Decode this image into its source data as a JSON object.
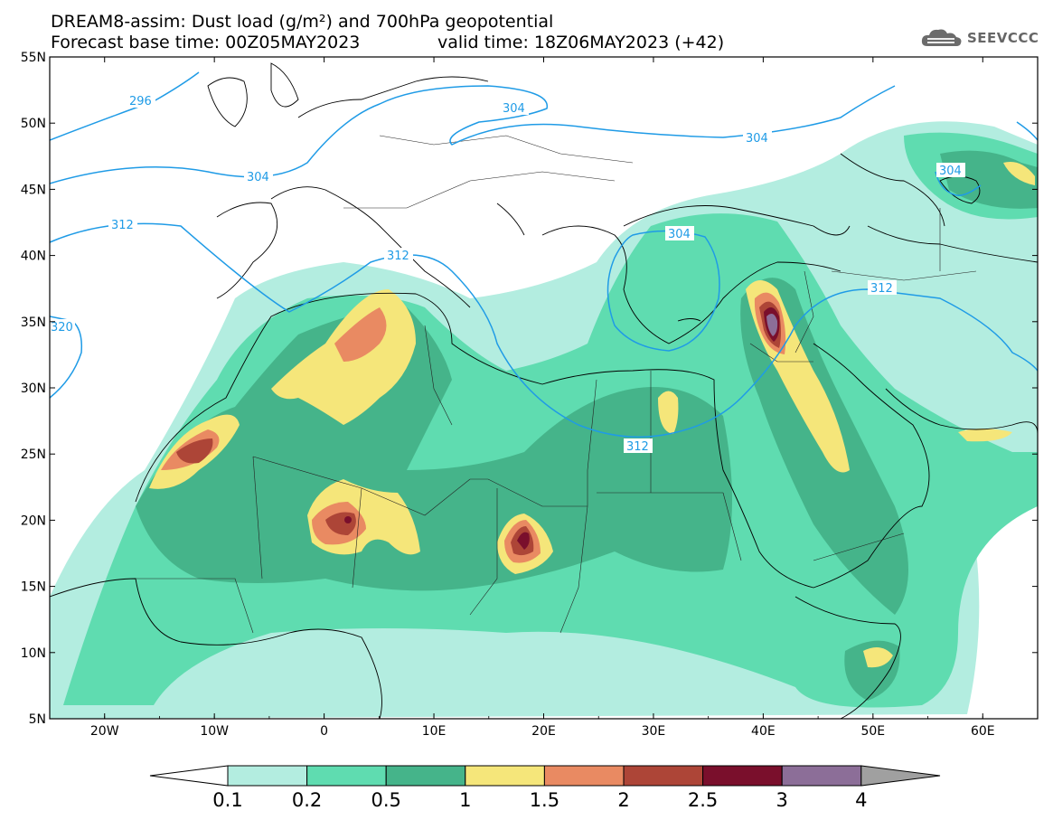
{
  "title": {
    "line1": "DREAM8-assim: Dust load (g/m²) and 700hPa geopotential",
    "line2": "Forecast base time: 00Z05MAY2023",
    "valid": "valid time: 18Z06MAY2023 (+42)"
  },
  "logo": {
    "text": "SEEVCCC",
    "icon": "cloud-logo-icon"
  },
  "axes": {
    "lat_labels": [
      "55N",
      "50N",
      "45N",
      "40N",
      "35N",
      "30N",
      "25N",
      "20N",
      "15N",
      "10N",
      "5N"
    ],
    "lon_labels": [
      "20W",
      "10W",
      "0",
      "10E",
      "20E",
      "30E",
      "40E",
      "50E",
      "60E"
    ],
    "lat_range": [
      5,
      55
    ],
    "lon_range": [
      -25,
      65
    ]
  },
  "contours": {
    "color": "#1f9be6",
    "labels": [
      "296",
      "304",
      "304",
      "304",
      "304",
      "312",
      "312",
      "312",
      "312",
      "320",
      "304"
    ]
  },
  "colorbar": {
    "colors": [
      "#ffffff",
      "#b3ede0",
      "#5fdcb0",
      "#45b48a",
      "#f5e67a",
      "#e98a62",
      "#ad4537",
      "#7a0f2c",
      "#8c6e98",
      "#a0a0a0"
    ],
    "labels": [
      "0.1",
      "0.2",
      "0.5",
      "1",
      "1.5",
      "2",
      "2.5",
      "3",
      "4"
    ]
  }
}
